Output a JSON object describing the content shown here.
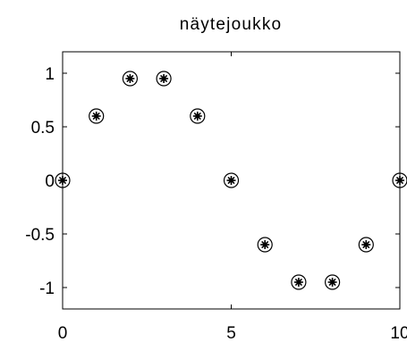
{
  "chart_data": {
    "type": "scatter",
    "title": "näytejoukko",
    "xlabel": "",
    "ylabel": "",
    "xlim": [
      0,
      10
    ],
    "ylim": [
      -1.2,
      1.2
    ],
    "x_ticks": [
      0,
      5,
      10
    ],
    "x_tick_labels": [
      "0",
      "5",
      "10"
    ],
    "y_ticks": [
      1,
      0.5,
      0,
      -0.5,
      -1
    ],
    "y_tick_labels": [
      "1",
      "0.5",
      "0",
      "-0.5",
      "-1"
    ],
    "grid": false,
    "series": [
      {
        "x": [
          0,
          1,
          2,
          3,
          4,
          5,
          6,
          7,
          8,
          9,
          10
        ],
        "y": [
          0,
          0.6,
          0.95,
          0.95,
          0.6,
          0,
          -0.6,
          -0.95,
          -0.95,
          -0.6,
          0
        ],
        "marker": "circled-star",
        "color": "#000000"
      }
    ]
  }
}
